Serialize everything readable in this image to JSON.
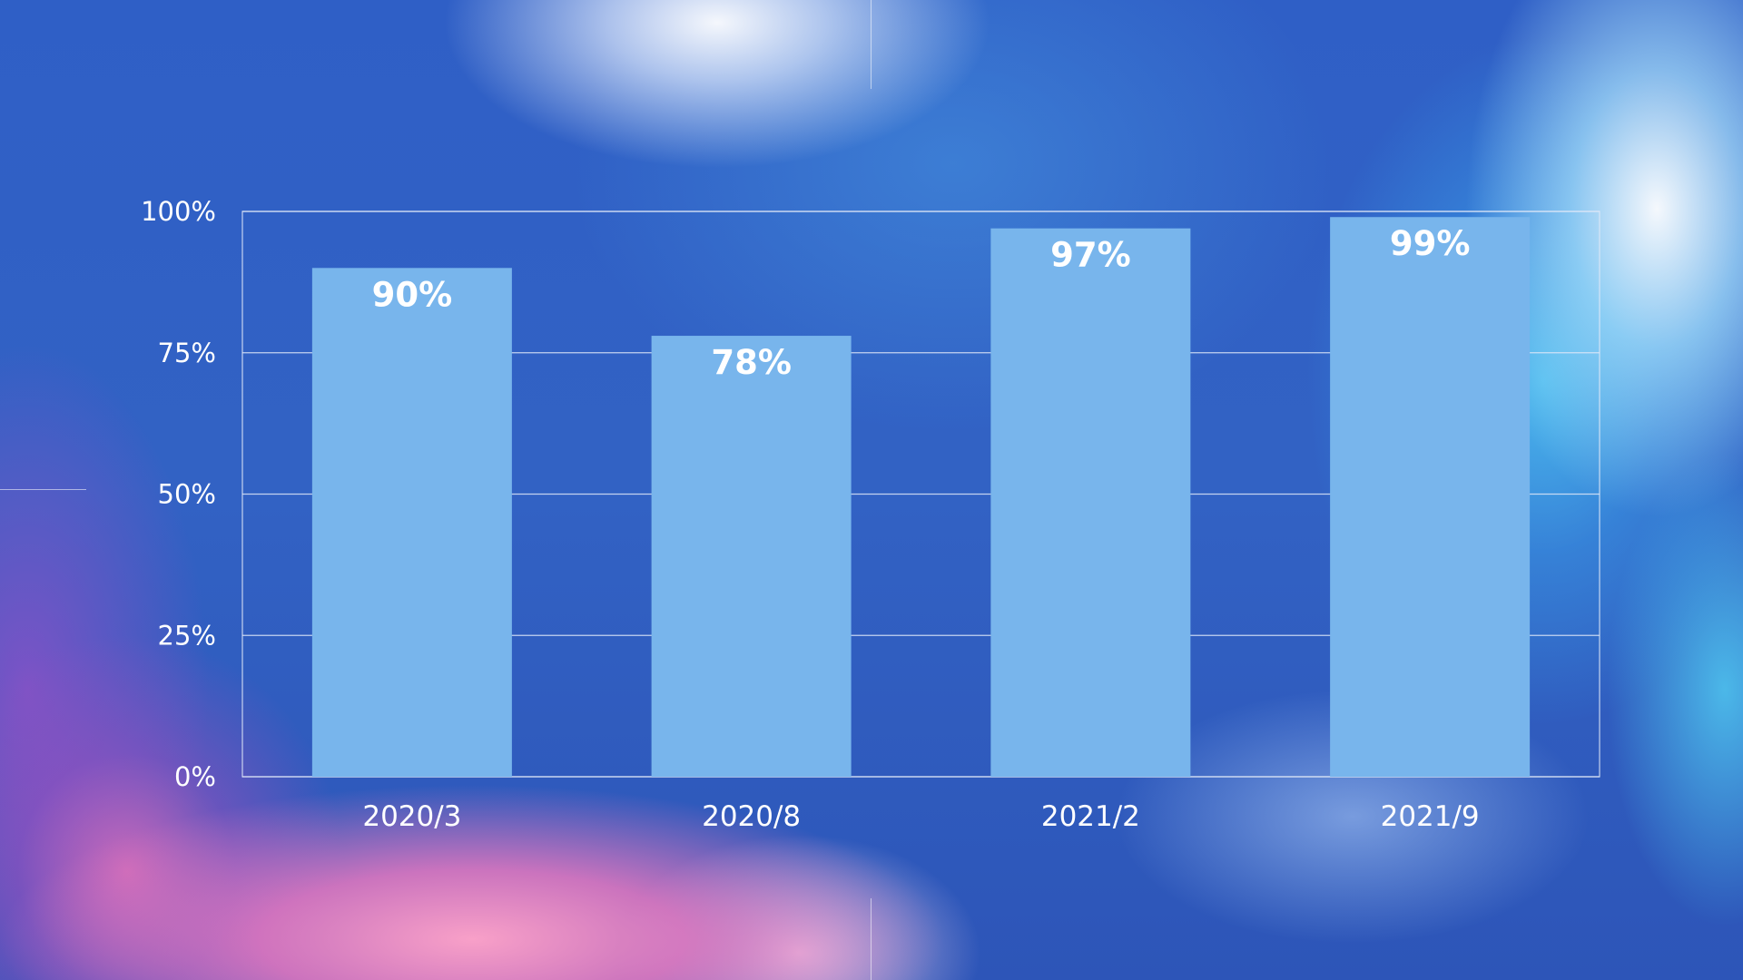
{
  "chart_data": {
    "type": "bar",
    "categories": [
      "2020/3",
      "2020/8",
      "2021/2",
      "2021/9"
    ],
    "values": [
      90,
      78,
      97,
      99
    ],
    "data_labels": [
      "90%",
      "78%",
      "97%",
      "99%"
    ],
    "y_ticks": [
      0,
      25,
      50,
      75,
      100
    ],
    "y_tick_labels": [
      "0%",
      "25%",
      "50%",
      "75%",
      "100%"
    ],
    "ylim": [
      0,
      100
    ],
    "grid": true,
    "legend": "none",
    "colors": {
      "bar": "#78b5ec",
      "grid": "#dfe8f8",
      "text": "#ffffff"
    }
  }
}
